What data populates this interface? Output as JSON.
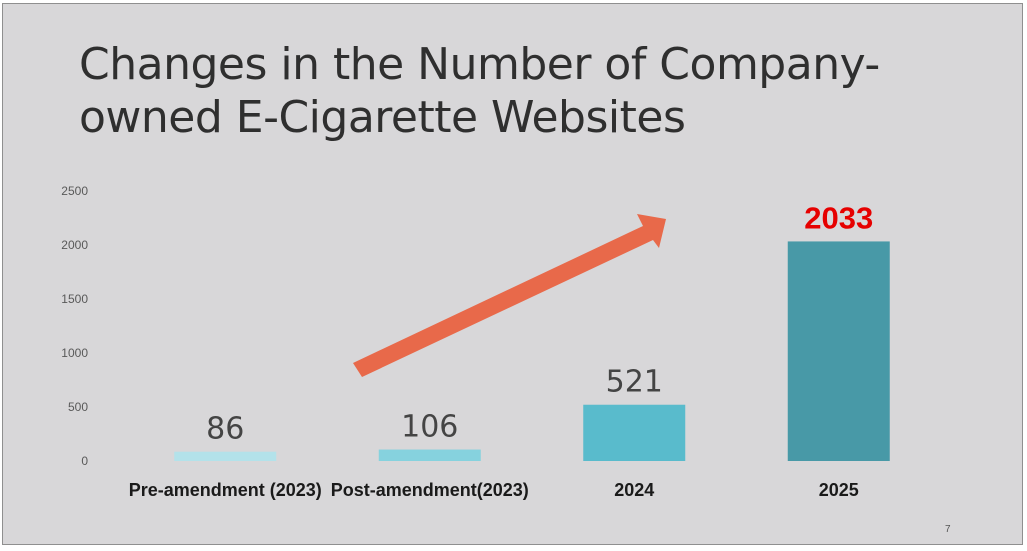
{
  "slide": {
    "title_lines": [
      "Changes in the Number of Company-",
      "owned E-Cigarette Websites"
    ],
    "page_number": "7"
  },
  "chart_data": {
    "type": "bar",
    "title": "Changes in the Number of Company-owned E-Cigarette Websites",
    "categories": [
      "Pre-amendment (2023)",
      "Post-amendment(2023)",
      "2024",
      "2025"
    ],
    "values": [
      86,
      106,
      521,
      2033
    ],
    "data_labels": [
      "86",
      "106",
      "521",
      "2033"
    ],
    "highlight_index": 3,
    "ylim": [
      0,
      2500
    ],
    "yticks": [
      0,
      500,
      1000,
      1500,
      2000,
      2500
    ],
    "grid": false,
    "legend": "none",
    "annotation": "upward trend arrow",
    "colors": {
      "bars": [
        "#b3e2ea",
        "#86d2de",
        "#59bbcc",
        "#4899a7"
      ],
      "highlight_label": "#e60000",
      "arrow": "#e8694a",
      "axis_text": "#595959",
      "label_text": "#444444"
    }
  }
}
